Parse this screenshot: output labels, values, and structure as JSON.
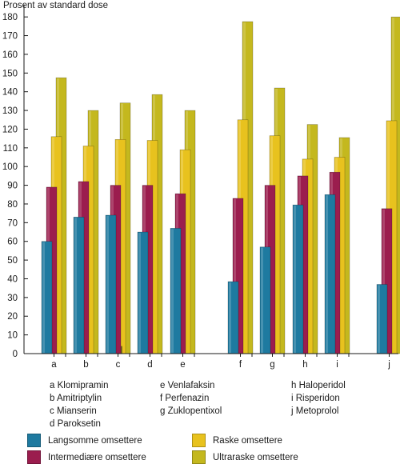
{
  "chart_data": {
    "type": "bar",
    "ylabel": "Prosent av standard dose",
    "ylim": [
      0,
      185
    ],
    "yticks": [
      0,
      10,
      20,
      30,
      40,
      50,
      60,
      70,
      80,
      90,
      100,
      110,
      120,
      130,
      140,
      150,
      160,
      170,
      180
    ],
    "categories": [
      "a",
      "b",
      "c",
      "d",
      "e",
      "f",
      "g",
      "h",
      "i",
      "j"
    ],
    "series": [
      {
        "name": "Langsomme omsettere",
        "color": "#1e7aa0",
        "values": [
          60,
          73,
          74,
          65,
          67,
          38.5,
          57,
          79.5,
          85,
          37
        ]
      },
      {
        "name": "Intermediære omsettere",
        "color": "#9b1d4e",
        "values": [
          89,
          92,
          90,
          90,
          85.5,
          83,
          90,
          95,
          97,
          77.5
        ]
      },
      {
        "name": "Raske omsettere",
        "color": "#e8c21e",
        "values": [
          116,
          111,
          114.5,
          114,
          109,
          125,
          116.5,
          104,
          105,
          124.5
        ]
      },
      {
        "name": "Ultraraske omsettere",
        "color": "#c4b81e",
        "values": [
          147.5,
          130,
          134,
          138.5,
          130,
          177.5,
          142,
          122.5,
          115.5,
          180
        ]
      }
    ],
    "annotation_c_ultra_line": 4
  },
  "drugs": {
    "col1": [
      "a Klomipramin",
      "b Amitriptylin",
      "c Mianserin",
      "d Paroksetin"
    ],
    "col2": [
      "e Venlafaksin",
      "f Perfenazin",
      "g Zuklopentixol"
    ],
    "col3": [
      "h Haloperidol",
      "i Risperidon",
      "j Metoprolol"
    ]
  },
  "legend": [
    {
      "label": "Langsomme omsettere",
      "color": "#1e7aa0"
    },
    {
      "label": "Raske omsettere",
      "color": "#e8c21e"
    },
    {
      "label": "Intermediære omsettere",
      "color": "#9b1d4e"
    },
    {
      "label": "Ultraraske omsettere",
      "color": "#c4b81e"
    }
  ]
}
